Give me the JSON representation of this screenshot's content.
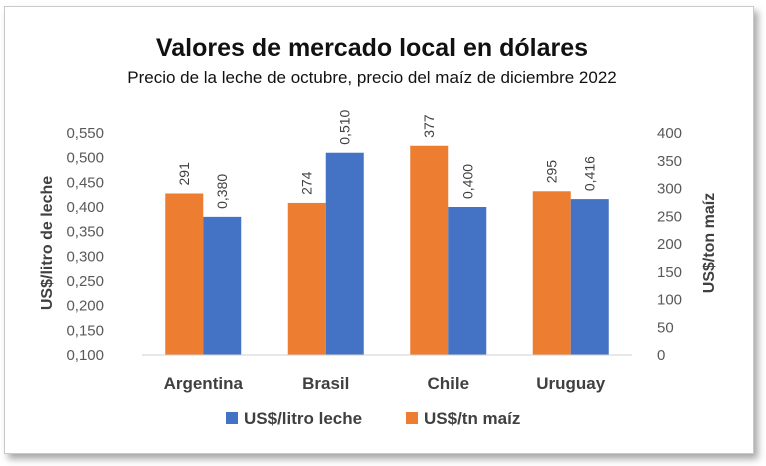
{
  "chart_data": {
    "type": "bar",
    "title": "Valores de mercado local en dólares",
    "subtitle": "Precio de la leche de octubre, precio del maíz de diciembre 2022",
    "categories": [
      "Argentina",
      "Brasil",
      "Chile",
      "Uruguay"
    ],
    "ylabel": "US$/litro de leche",
    "y2label": "US$/ton maíz",
    "ylim": [
      0.1,
      0.55
    ],
    "y2lim": [
      0,
      400
    ],
    "y_ticks": [
      "0,100",
      "0,150",
      "0,200",
      "0,250",
      "0,300",
      "0,350",
      "0,400",
      "0,450",
      "0,500",
      "0,550"
    ],
    "y2_ticks": [
      "0",
      "50",
      "100",
      "150",
      "200",
      "250",
      "300",
      "350",
      "400"
    ],
    "grid": false,
    "legend_position": "bottom",
    "series": [
      {
        "name": "US$/tn maíz",
        "axis": "right",
        "color": "#ED7D31",
        "values": [
          291,
          274,
          377,
          295
        ],
        "labels": [
          "291",
          "274",
          "377",
          "295"
        ]
      },
      {
        "name": "US$/litro leche",
        "axis": "left",
        "color": "#4472C4",
        "values": [
          0.38,
          0.51,
          0.4,
          0.416
        ],
        "labels": [
          "0,380",
          "0,510",
          "0,400",
          "0,416"
        ]
      }
    ],
    "legend_order": [
      "US$/litro leche",
      "US$/tn maíz"
    ]
  }
}
